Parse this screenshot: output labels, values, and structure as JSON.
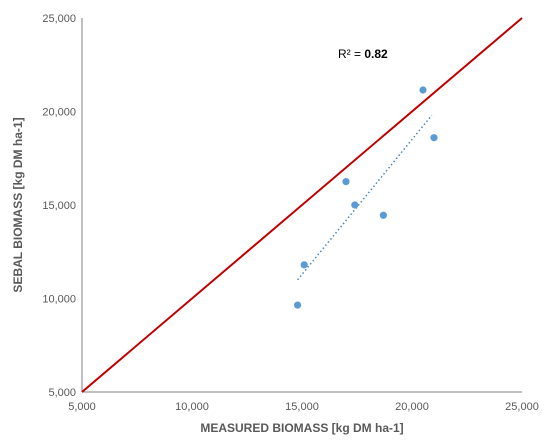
{
  "chart_data": {
    "type": "scatter",
    "xlabel": "MEASURED BIOMASS [kg DM ha-1]",
    "ylabel": "SEBAL BIOMASS [kg DM ha-1]",
    "xlim": [
      5000,
      25000
    ],
    "ylim": [
      5000,
      25000
    ],
    "x_ticks": [
      "5,000",
      "10,000",
      "15,000",
      "20,000",
      "25,000"
    ],
    "y_ticks": [
      "5,000",
      "10,000",
      "15,000",
      "20,000",
      "25,000"
    ],
    "grid": false,
    "points": [
      {
        "x": 14800,
        "y": 9650
      },
      {
        "x": 15100,
        "y": 11800
      },
      {
        "x": 17000,
        "y": 16250
      },
      {
        "x": 17400,
        "y": 15000
      },
      {
        "x": 18700,
        "y": 14450
      },
      {
        "x": 20500,
        "y": 21150
      },
      {
        "x": 21000,
        "y": 18600
      }
    ],
    "reference_line": {
      "x": [
        5000,
        25000
      ],
      "y": [
        5000,
        25000
      ],
      "color": "#c00000"
    },
    "trendline": {
      "x": [
        14800,
        20900
      ],
      "y": [
        11000,
        19800
      ],
      "color": "#4a86b8",
      "style": "dotted"
    },
    "annotation": {
      "label": "R² = ",
      "value": "0.82"
    },
    "colors": {
      "points": "#5b9bd5",
      "axis": "#7f7f7f",
      "text": "#595959"
    }
  }
}
